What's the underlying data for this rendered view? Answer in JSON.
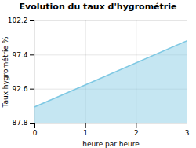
{
  "chart_data": {
    "type": "area",
    "title": "Evolution du taux d'hygrométrie",
    "xlabel": "heure par heure",
    "ylabel": "Taux hygrométrie %",
    "x": [
      0,
      3
    ],
    "values": [
      90.1,
      99.4
    ],
    "color": "#7ec8e3",
    "xlim": [
      0,
      3
    ],
    "xticks": [
      0,
      1,
      2,
      3
    ],
    "ylim": [
      87.8,
      102.2
    ],
    "yticks": [
      87.8,
      92.6,
      97.4,
      102.2
    ],
    "grid": true
  }
}
